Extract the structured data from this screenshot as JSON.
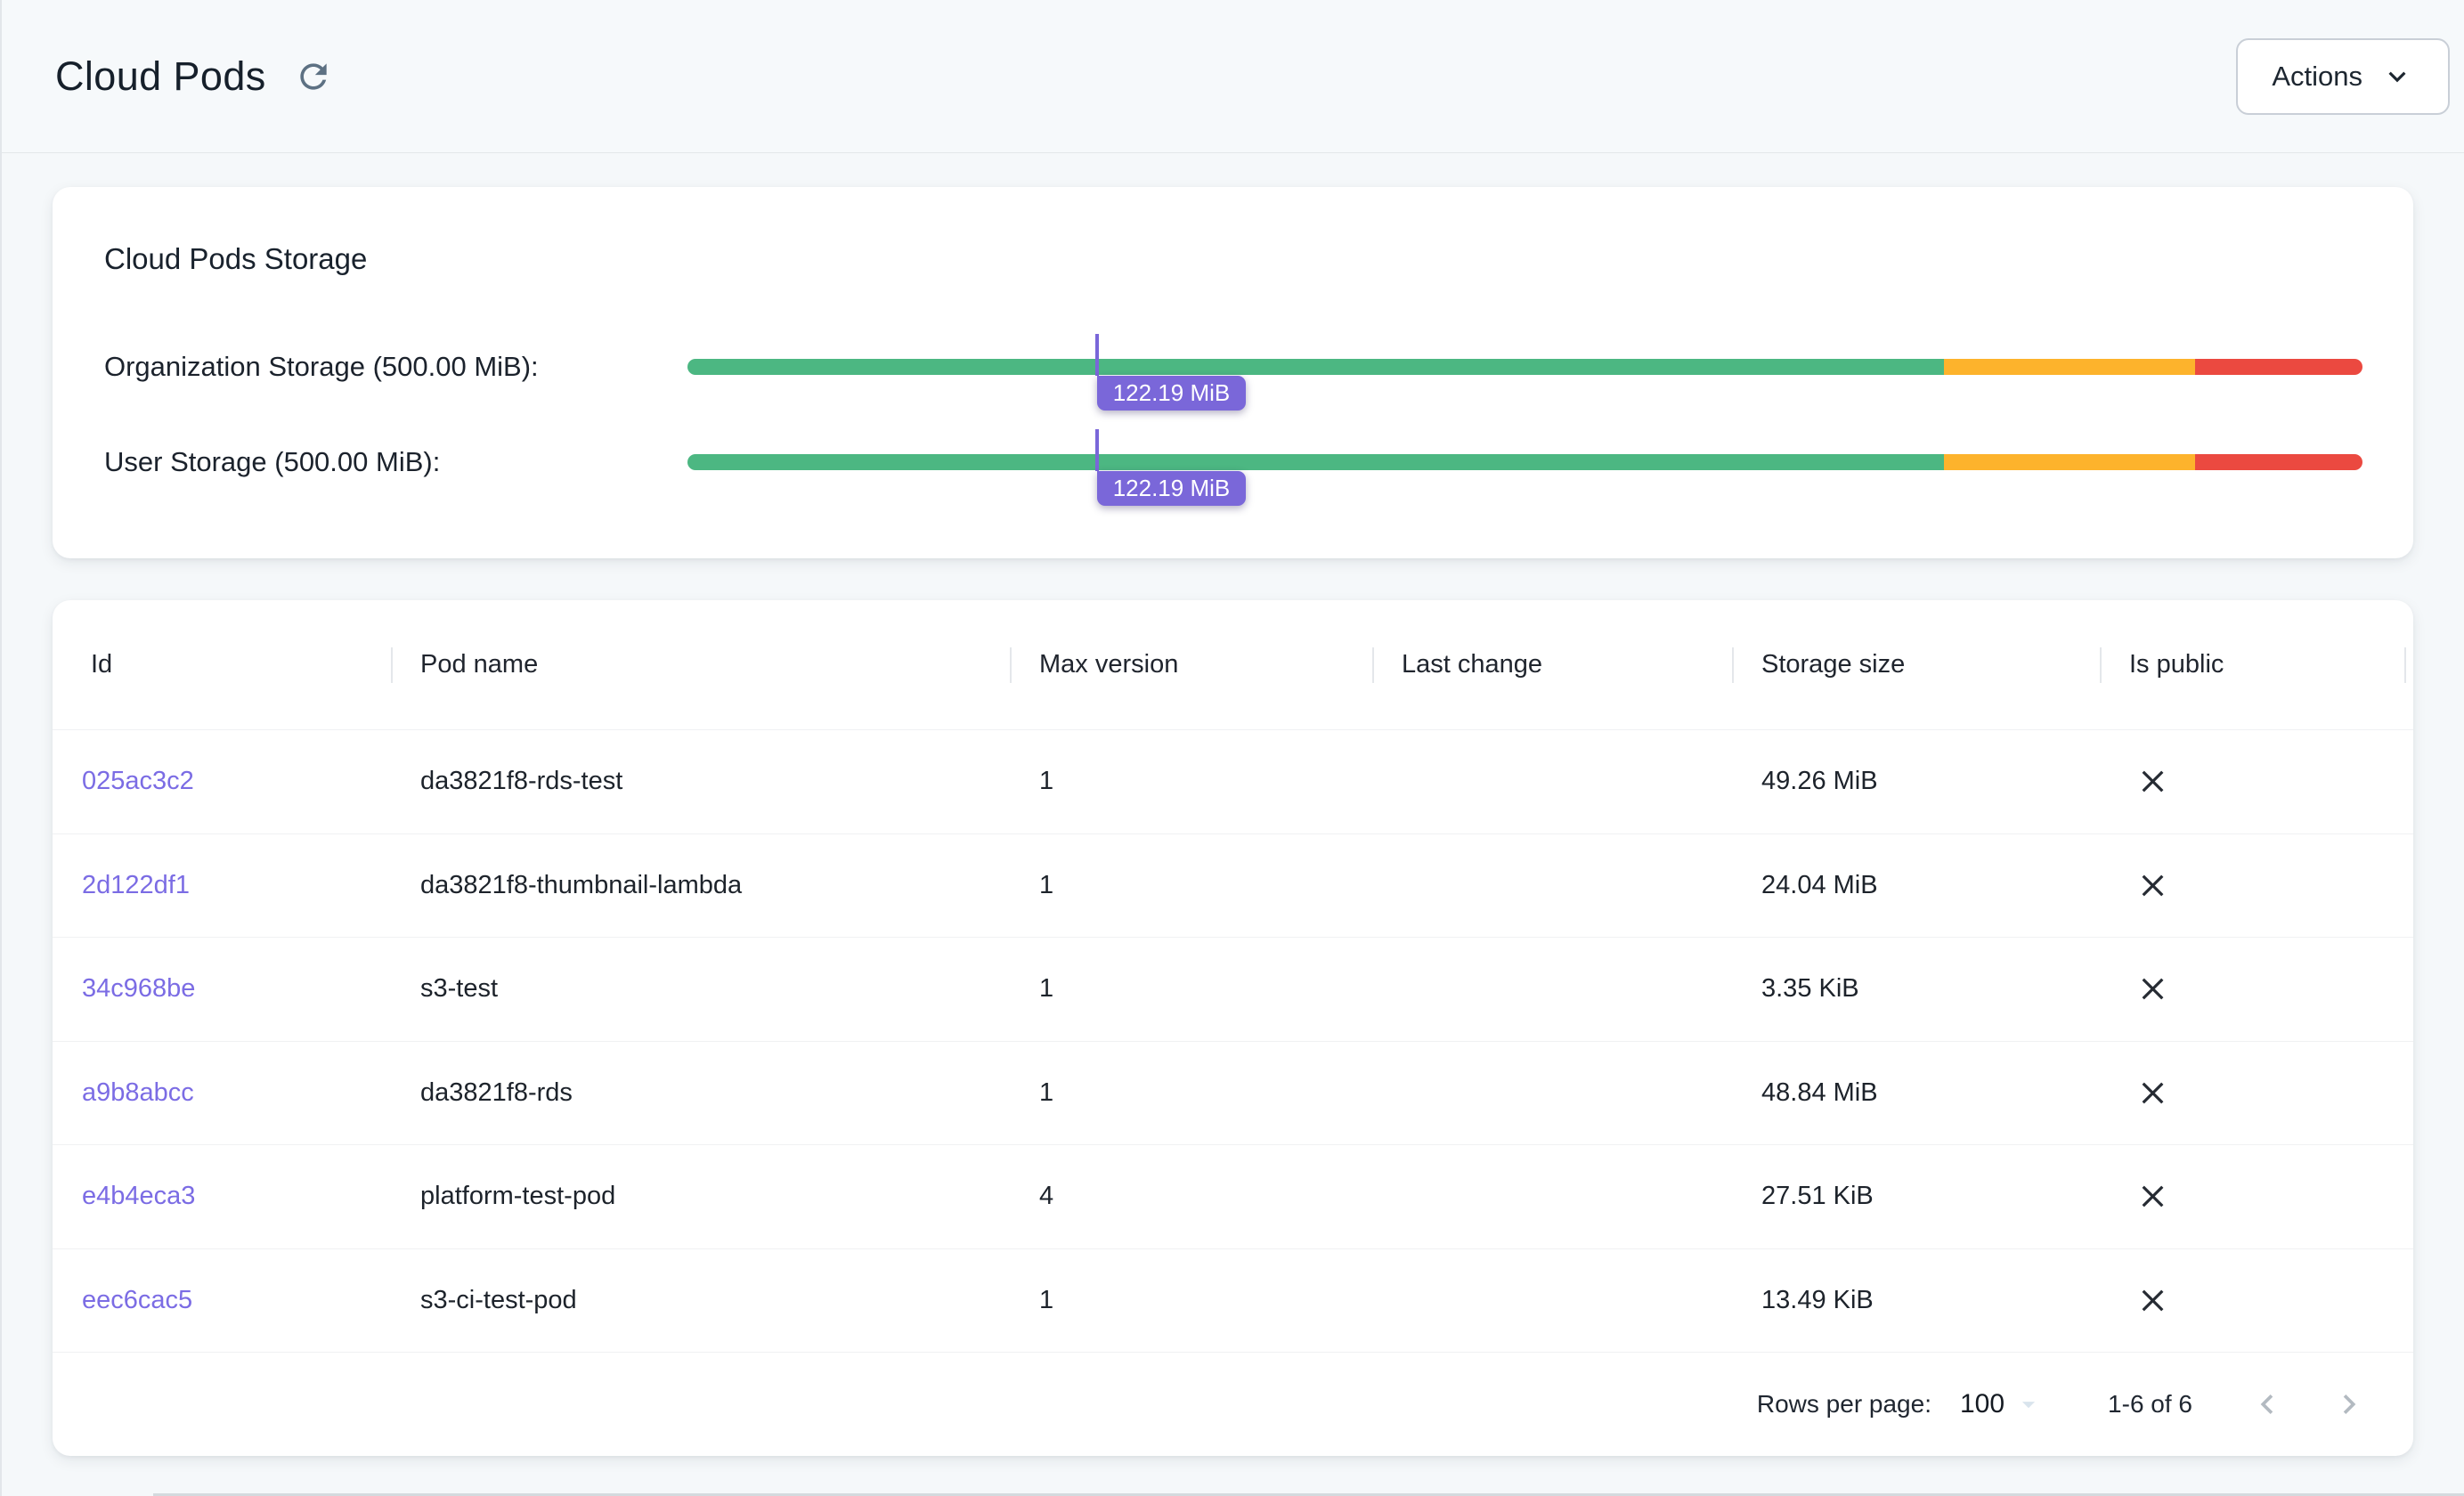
{
  "header": {
    "title": "Cloud Pods",
    "actions_label": "Actions"
  },
  "colors": {
    "green": "#4cb782",
    "yellow": "#fdb32c",
    "red": "#eb4940",
    "purple": "#7a67d9",
    "link_purple": "#7b6ce4"
  },
  "storage_card": {
    "title": "Cloud Pods Storage",
    "thresholds": {
      "green_end": 0.75,
      "yellow_end": 0.9
    },
    "bars": [
      {
        "label": "Organization Storage (500.00 MiB):",
        "tooltip": "122.19 MiB",
        "used_fraction": 0.2444
      },
      {
        "label": "User Storage (500.00 MiB):",
        "tooltip": "122.19 MiB",
        "used_fraction": 0.2444
      }
    ]
  },
  "table": {
    "columns": [
      "Id",
      "Pod name",
      "Max version",
      "Last change",
      "Storage size",
      "Is public"
    ],
    "rows": [
      {
        "id": "025ac3c2",
        "pod_name": "da3821f8-rds-test",
        "max_version": "1",
        "last_change": "",
        "storage_size": "49.26 MiB",
        "is_public": false
      },
      {
        "id": "2d122df1",
        "pod_name": "da3821f8-thumbnail-lambda",
        "max_version": "1",
        "last_change": "",
        "storage_size": "24.04 MiB",
        "is_public": false
      },
      {
        "id": "34c968be",
        "pod_name": "s3-test",
        "max_version": "1",
        "last_change": "",
        "storage_size": "3.35 KiB",
        "is_public": false
      },
      {
        "id": "a9b8abcc",
        "pod_name": "da3821f8-rds",
        "max_version": "1",
        "last_change": "",
        "storage_size": "48.84 MiB",
        "is_public": false
      },
      {
        "id": "e4b4eca3",
        "pod_name": "platform-test-pod",
        "max_version": "4",
        "last_change": "",
        "storage_size": "27.51 KiB",
        "is_public": false
      },
      {
        "id": "eec6cac5",
        "pod_name": "s3-ci-test-pod",
        "max_version": "1",
        "last_change": "",
        "storage_size": "13.49 KiB",
        "is_public": false
      }
    ],
    "footer": {
      "rows_per_page_label": "Rows per page:",
      "rows_per_page_value": "100",
      "range_label": "1-6 of 6"
    }
  }
}
